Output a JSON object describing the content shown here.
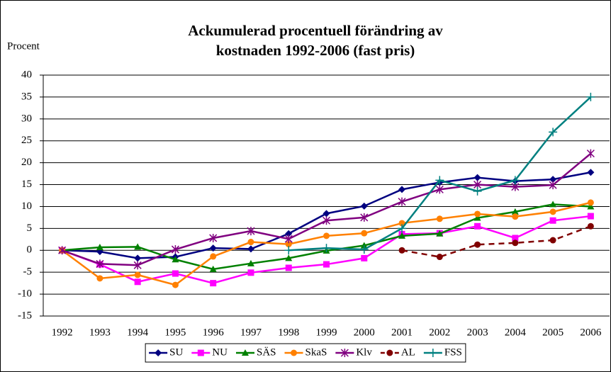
{
  "chart_data": {
    "type": "line",
    "title": [
      "Ackumulerad procentuell förändring av",
      "kostnaden 1992-2006 (fast pris)"
    ],
    "y_label": "Procent",
    "categories": [
      "1992",
      "1993",
      "1994",
      "1995",
      "1996",
      "1997",
      "1998",
      "1999",
      "2000",
      "2001",
      "2002",
      "2003",
      "2004",
      "2005",
      "2006"
    ],
    "series": [
      {
        "name": "SU",
        "color": "#000080",
        "marker": "diamond",
        "values": [
          0,
          -0.3,
          -1.8,
          -1.5,
          0.5,
          0.3,
          3.8,
          8.4,
          10.1,
          13.9,
          15.5,
          16.6,
          15.8,
          16.2,
          17.8
        ]
      },
      {
        "name": "NU",
        "color": "#ff00ff",
        "marker": "square",
        "values": [
          0,
          -3.2,
          -7.2,
          -5.3,
          -7.5,
          -5.1,
          -4.0,
          -3.2,
          -1.8,
          3.7,
          3.9,
          5.5,
          2.8,
          6.8,
          7.8
        ]
      },
      {
        "name": "SÄS",
        "color": "#008000",
        "marker": "triangle",
        "values": [
          0,
          0.7,
          0.8,
          -2.1,
          -4.3,
          -3.0,
          -1.8,
          -0.1,
          1.1,
          3.3,
          3.8,
          7.4,
          8.8,
          10.5,
          10.0
        ]
      },
      {
        "name": "SkaS",
        "color": "#ff8000",
        "marker": "circle",
        "values": [
          0,
          -6.4,
          -5.6,
          -7.9,
          -1.4,
          1.9,
          1.4,
          3.3,
          3.9,
          6.2,
          7.2,
          8.3,
          7.7,
          8.8,
          10.9
        ]
      },
      {
        "name": "Klv",
        "color": "#800080",
        "marker": "star",
        "values": [
          0,
          -3.1,
          -3.4,
          0.2,
          2.8,
          4.4,
          2.6,
          6.8,
          7.5,
          11.1,
          13.9,
          15.0,
          14.5,
          14.9,
          22.1
        ]
      },
      {
        "name": "AL",
        "color": "#800000",
        "marker": "circle",
        "dash": true,
        "values": [
          null,
          null,
          null,
          null,
          null,
          null,
          null,
          null,
          null,
          0,
          -1.5,
          1.3,
          1.7,
          2.3,
          5.5
        ]
      },
      {
        "name": "FSS",
        "color": "#008080",
        "marker": "plus",
        "values": [
          null,
          null,
          null,
          null,
          null,
          null,
          0,
          0.5,
          0.2,
          5.0,
          16.0,
          13.5,
          16.0,
          27.0,
          35.0
        ]
      }
    ],
    "ylim": [
      -15,
      40
    ],
    "yticks": [
      -15,
      -10,
      -5,
      0,
      5,
      10,
      15,
      20,
      25,
      30,
      35,
      40
    ],
    "grid": true,
    "legend": "bottom"
  }
}
